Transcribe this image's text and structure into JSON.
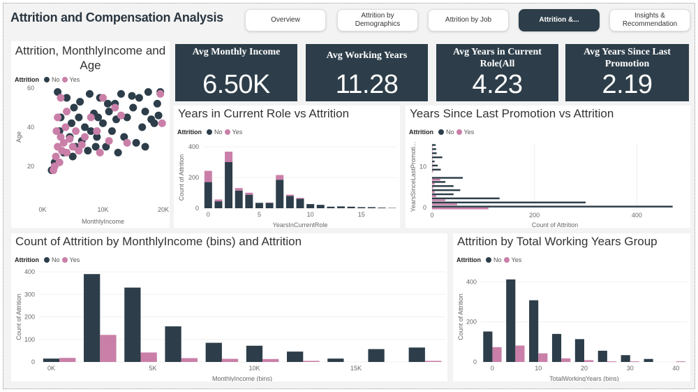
{
  "header": {
    "title": "Attrition and Compensation Analysis"
  },
  "tabs": [
    {
      "label": "Overview"
    },
    {
      "label": "Attrition by Demographics"
    },
    {
      "label": "Attrition by Job"
    },
    {
      "label": "Attrition &...",
      "active": true
    },
    {
      "label": "Insights & Recommendation"
    }
  ],
  "colors": {
    "no": "#2d3e4a",
    "yes": "#c97fa8",
    "card": "#2d3e4a"
  },
  "legend": {
    "title": "Attrition",
    "no": "No",
    "yes": "Yes"
  },
  "kpis": [
    {
      "label": "Avg Monthly Income",
      "value": "6.50K"
    },
    {
      "label": "Avg Working Years",
      "value": "11.28"
    },
    {
      "label": "Avg Years in Current Role(All",
      "value": "4.23"
    },
    {
      "label": "Avg Years Since Last Promotion",
      "value": "2.19"
    }
  ],
  "chart_data": [
    {
      "id": "scatter",
      "type": "scatter",
      "title": "Attrition, MonthlyIncome and Age",
      "xlabel": "MonthlyIncome",
      "ylabel": "Age",
      "xlim": [
        0,
        20000
      ],
      "ylim": [
        10,
        60
      ],
      "xticks": [
        "0K",
        "10K",
        "20K"
      ],
      "yticks": [
        "20",
        "40",
        "60"
      ],
      "series": [
        {
          "name": "No",
          "points": [
            [
              2500,
              58
            ],
            [
              4000,
              55
            ],
            [
              5200,
              50
            ],
            [
              6000,
              45
            ],
            [
              7000,
              40
            ],
            [
              8000,
              38
            ],
            [
              9000,
              35
            ],
            [
              10000,
              42
            ],
            [
              11000,
              48
            ],
            [
              12000,
              52
            ],
            [
              13000,
              57
            ],
            [
              14000,
              45
            ],
            [
              15000,
              50
            ],
            [
              16000,
              55
            ],
            [
              17000,
              48
            ],
            [
              18000,
              44
            ],
            [
              19000,
              52
            ],
            [
              19500,
              58
            ],
            [
              3000,
              45
            ],
            [
              4500,
              35
            ],
            [
              5500,
              30
            ],
            [
              6500,
              33
            ],
            [
              7500,
              28
            ],
            [
              8500,
              47
            ],
            [
              9500,
              55
            ],
            [
              10500,
              30
            ],
            [
              11500,
              38
            ],
            [
              12500,
              27
            ],
            [
              13500,
              35
            ],
            [
              16500,
              40
            ],
            [
              17500,
              58
            ],
            [
              18500,
              42
            ],
            [
              15500,
              32
            ],
            [
              17000,
              30
            ],
            [
              2000,
              22
            ],
            [
              3500,
              27
            ],
            [
              4800,
              42
            ],
            [
              6200,
              53
            ],
            [
              7800,
              57
            ],
            [
              9200,
              45
            ],
            [
              10800,
              52
            ],
            [
              12200,
              44
            ],
            [
              14800,
              56
            ],
            [
              19200,
              46
            ],
            [
              1500,
              18
            ],
            [
              2800,
              38
            ],
            [
              5000,
              25
            ],
            [
              8800,
              30
            ]
          ]
        },
        {
          "name": "Yes",
          "points": [
            [
              2000,
              20
            ],
            [
              2200,
              25
            ],
            [
              2500,
              30
            ],
            [
              2800,
              22
            ],
            [
              3000,
              35
            ],
            [
              3200,
              28
            ],
            [
              3500,
              32
            ],
            [
              3800,
              40
            ],
            [
              4000,
              27
            ],
            [
              4500,
              34
            ],
            [
              5000,
              30
            ],
            [
              5500,
              38
            ],
            [
              6000,
              28
            ],
            [
              7000,
              35
            ],
            [
              8000,
              45
            ],
            [
              9000,
              38
            ],
            [
              10000,
              55
            ],
            [
              11000,
              33
            ],
            [
              12000,
              50
            ],
            [
              13000,
              46
            ],
            [
              2500,
              45
            ],
            [
              3000,
              55
            ],
            [
              4000,
              48
            ],
            [
              1800,
              18
            ],
            [
              2300,
              38
            ],
            [
              6500,
              31
            ],
            [
              19500,
              57
            ],
            [
              19800,
              42
            ],
            [
              14000,
              32
            ],
            [
              9500,
              27
            ]
          ]
        }
      ]
    },
    {
      "id": "current-role",
      "type": "bar",
      "stacked": true,
      "title": "Years in Current Role vs Attrition",
      "xlabel": "YearsInCurrentRole",
      "ylabel": "Count of Attrition",
      "xlim": [
        0,
        20
      ],
      "ylim": [
        0,
        400
      ],
      "xticks": [
        0,
        5,
        10,
        15,
        20
      ],
      "yticks": [
        0,
        200,
        400
      ],
      "categories": [
        0,
        1,
        2,
        3,
        4,
        5,
        6,
        7,
        8,
        9,
        10,
        11,
        12,
        13,
        14,
        15,
        16,
        17,
        18
      ],
      "series": [
        {
          "name": "No",
          "values": [
            170,
            45,
            300,
            115,
            88,
            35,
            35,
            185,
            80,
            62,
            27,
            22,
            10,
            12,
            10,
            7,
            7,
            4,
            2
          ]
        },
        {
          "name": "Yes",
          "values": [
            73,
            12,
            68,
            16,
            13,
            0,
            2,
            31,
            8,
            5,
            0,
            0,
            0,
            0,
            0,
            0,
            0,
            0,
            0
          ]
        }
      ]
    },
    {
      "id": "promotion",
      "type": "bar",
      "orientation": "horizontal",
      "title": "Years Since Last Promotion vs Attrition",
      "xlabel": "Count of Attrition",
      "ylabel": "YearsSinceLastPromoti...",
      "xlim": [
        0,
        480
      ],
      "ylim": [
        0,
        15
      ],
      "xticks": [
        0,
        200,
        400
      ],
      "yticks": [
        0,
        10
      ],
      "categories": [
        0,
        1,
        2,
        3,
        4,
        5,
        6,
        7,
        8,
        9,
        10,
        11,
        12,
        13,
        14,
        15
      ],
      "series": [
        {
          "name": "No",
          "values": [
            470,
            300,
            132,
            42,
            55,
            42,
            26,
            60,
            0,
            17,
            11,
            5,
            20,
            9,
            8,
            7
          ]
        },
        {
          "name": "Yes",
          "values": [
            110,
            49,
            26,
            8,
            5,
            2,
            5,
            16,
            0,
            2,
            1,
            1,
            1,
            1,
            1,
            1
          ]
        }
      ]
    },
    {
      "id": "income-bins",
      "type": "bar",
      "title": "Count of Attrition by MonthlyIncome (bins) and Attrition",
      "xlabel": "MonthlyIncome (bins)",
      "ylabel": "Count of Attrition",
      "ylim": [
        0,
        400
      ],
      "yticks": [
        0,
        100,
        200,
        300,
        400
      ],
      "xticks": [
        "0K",
        "5K",
        "10K",
        "15K"
      ],
      "categories": [
        0,
        2000,
        4000,
        6000,
        8000,
        10000,
        12000,
        14000,
        16000,
        18000
      ],
      "series": [
        {
          "name": "No",
          "values": [
            15,
            390,
            330,
            158,
            85,
            72,
            46,
            15,
            57,
            64
          ]
        },
        {
          "name": "Yes",
          "values": [
            18,
            120,
            42,
            17,
            14,
            13,
            5,
            0,
            0,
            5
          ]
        }
      ]
    },
    {
      "id": "working-years",
      "type": "bar",
      "title": "Attrition by Total Working Years Group",
      "xlabel": "TotalWorkingYears (bins)",
      "ylabel": "Count of Attrition",
      "ylim": [
        0,
        450
      ],
      "yticks": [
        0,
        200,
        400
      ],
      "xticks": [
        0,
        10,
        20,
        30,
        40
      ],
      "categories": [
        0,
        5,
        10,
        15,
        20,
        25,
        30,
        35,
        40
      ],
      "series": [
        {
          "name": "No",
          "values": [
            152,
            412,
            308,
            140,
            114,
            56,
            34,
            15,
            0
          ]
        },
        {
          "name": "Yes",
          "values": [
            74,
            82,
            43,
            18,
            9,
            3,
            3,
            0,
            3
          ]
        }
      ]
    }
  ]
}
